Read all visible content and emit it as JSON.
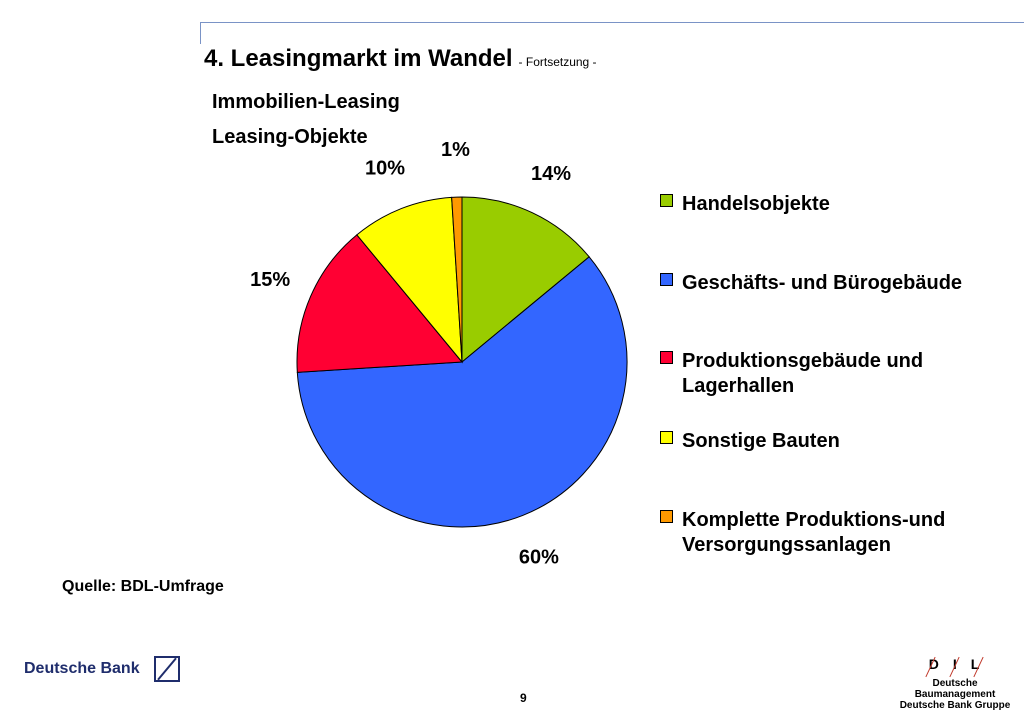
{
  "header": {
    "title": "4. Leasingmarkt im Wandel",
    "subtitle": "- Fortsetzung -",
    "heading1": "Immobilien-Leasing",
    "heading2": "Leasing-Objekte"
  },
  "chart_data": {
    "type": "pie",
    "title": "Leasing-Objekte",
    "start_angle_deg": 0,
    "direction": "clockwise",
    "labels": [
      "Handelsobjekte",
      "Geschäfts- und Bürogebäude",
      "Produktionsgebäude und Lagerhallen",
      "Sonstige Bauten",
      "Komplette Produktions-und Versorgungssanlagen"
    ],
    "values": [
      14,
      60,
      15,
      10,
      1
    ],
    "value_labels": [
      "14%",
      "60%",
      "15%",
      "10%",
      "1%"
    ],
    "colors": [
      "#99cc00",
      "#3366ff",
      "#ff0033",
      "#ffff00",
      "#ff9900"
    ],
    "legend_position": "right"
  },
  "legend": {
    "items": [
      {
        "line1": "Handelsobjekte",
        "line2": ""
      },
      {
        "line1": "Geschäfts- und Bürogebäude",
        "line2": ""
      },
      {
        "line1": "Produktionsgebäude und",
        "line2": "Lagerhallen"
      },
      {
        "line1": "Sonstige Bauten",
        "line2": ""
      },
      {
        "line1": "Komplette Produktions-und",
        "line2": "Versorgungssanlagen"
      }
    ]
  },
  "source": "Quelle: BDL-Umfrage",
  "footer": {
    "brand": "Deutsche Bank",
    "page_number": "9",
    "dil_letters": [
      "D",
      "I",
      "L"
    ],
    "dil_name_line1": "Deutsche Baumanagement",
    "dil_name_line2": "Deutsche Bank Gruppe"
  }
}
